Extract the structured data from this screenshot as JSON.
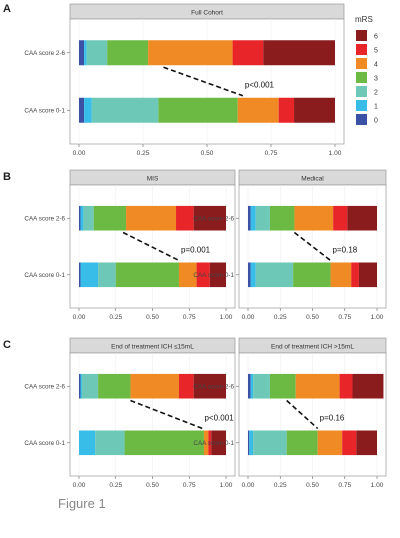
{
  "figure": {
    "caption": "Figure 1",
    "legend_title": "mRS",
    "legend_levels": [
      "6",
      "5",
      "4",
      "3",
      "2",
      "1",
      "0"
    ]
  },
  "colors": {
    "0": "#3a51a6",
    "1": "#38bde8",
    "2": "#6ec8b8",
    "3": "#6cba44",
    "4": "#f08a25",
    "5": "#e8262a",
    "6": "#8b1c1d",
    "strip_bg": "#d9d9d9",
    "panel_border": "#999999",
    "grid": "#eeeeee",
    "text": "#444444"
  },
  "chart_data": [
    {
      "type": "bar",
      "orientation": "horizontal",
      "stacked": true,
      "panel_label": "A",
      "title": "Full Cohort",
      "categories": [
        "CAA score 2-6",
        "CAA score 0-1"
      ],
      "xlim": [
        0,
        1
      ],
      "xticks": [
        "0.00",
        "0.25",
        "0.50",
        "0.75",
        "1.00"
      ],
      "segments": [
        [
          0.02,
          0.01,
          0.08,
          0.16,
          0.33,
          0.12,
          0.28
        ],
        [
          0.02,
          0.03,
          0.26,
          0.31,
          0.16,
          0.06,
          0.16
        ]
      ],
      "annotation": {
        "text": "p<0.001",
        "from": [
          0.33,
          0
        ],
        "to": [
          0.64,
          1
        ]
      },
      "legend": "right"
    },
    {
      "type": "bar",
      "orientation": "horizontal",
      "stacked": true,
      "panel_label": "B",
      "title": "MIS",
      "categories": [
        "CAA score 2-6",
        "CAA score 0-1"
      ],
      "xlim": [
        0,
        1
      ],
      "xticks": [
        "0.00",
        "0.25",
        "0.50",
        "0.75",
        "1.00"
      ],
      "segments": [
        [
          0.01,
          0.02,
          0.07,
          0.22,
          0.34,
          0.12,
          0.22
        ],
        [
          0.01,
          0.12,
          0.12,
          0.43,
          0.12,
          0.09,
          0.11
        ]
      ],
      "annotation": {
        "text": "p=0.001",
        "from": [
          0.3,
          0
        ],
        "to": [
          0.68,
          1
        ]
      }
    },
    {
      "type": "bar",
      "orientation": "horizontal",
      "stacked": true,
      "panel_label": "",
      "title": "Medical",
      "categories": [
        "CAA score 2-6",
        "CAA score 0-1"
      ],
      "xlim": [
        0,
        1
      ],
      "xticks": [
        "0.00",
        "0.25",
        "0.50",
        "0.75",
        "1.00"
      ],
      "segments": [
        [
          0.02,
          0.04,
          0.11,
          0.19,
          0.3,
          0.11,
          0.23
        ],
        [
          0.02,
          0.04,
          0.29,
          0.29,
          0.16,
          0.06,
          0.14
        ]
      ],
      "annotation": {
        "text": "p=0.18",
        "from": [
          0.36,
          0
        ],
        "to": [
          0.64,
          1
        ]
      }
    },
    {
      "type": "bar",
      "orientation": "horizontal",
      "stacked": true,
      "panel_label": "C",
      "title": "End of treatment ICH ≤15mL",
      "categories": [
        "CAA score 2-6",
        "CAA score 0-1"
      ],
      "xlim": [
        0,
        1
      ],
      "xticks": [
        "0.00",
        "0.25",
        "0.50",
        "0.75",
        "1.00"
      ],
      "segments": [
        [
          0.01,
          0.01,
          0.11,
          0.22,
          0.33,
          0.1,
          0.22
        ],
        [
          0.0,
          0.11,
          0.2,
          0.54,
          0.03,
          0.02,
          0.1
        ]
      ],
      "annotation": {
        "text": "p<0.001",
        "from": [
          0.35,
          0
        ],
        "to": [
          0.84,
          1
        ]
      }
    },
    {
      "type": "bar",
      "orientation": "horizontal",
      "stacked": true,
      "panel_label": "",
      "title": "End of treatment ICH >15mL",
      "categories": [
        "CAA score 2-6",
        "CAA score 0-1"
      ],
      "xlim": [
        0,
        1
      ],
      "xticks": [
        "0.00",
        "0.25",
        "0.50",
        "0.75",
        "1.00"
      ],
      "segments": [
        [
          0.02,
          0.02,
          0.13,
          0.2,
          0.34,
          0.1,
          0.24
        ],
        [
          0.01,
          0.03,
          0.26,
          0.24,
          0.19,
          0.11,
          0.16
        ]
      ],
      "annotation": {
        "text": "p=0.16",
        "from": [
          0.3,
          0
        ],
        "to": [
          0.54,
          1
        ]
      }
    }
  ]
}
